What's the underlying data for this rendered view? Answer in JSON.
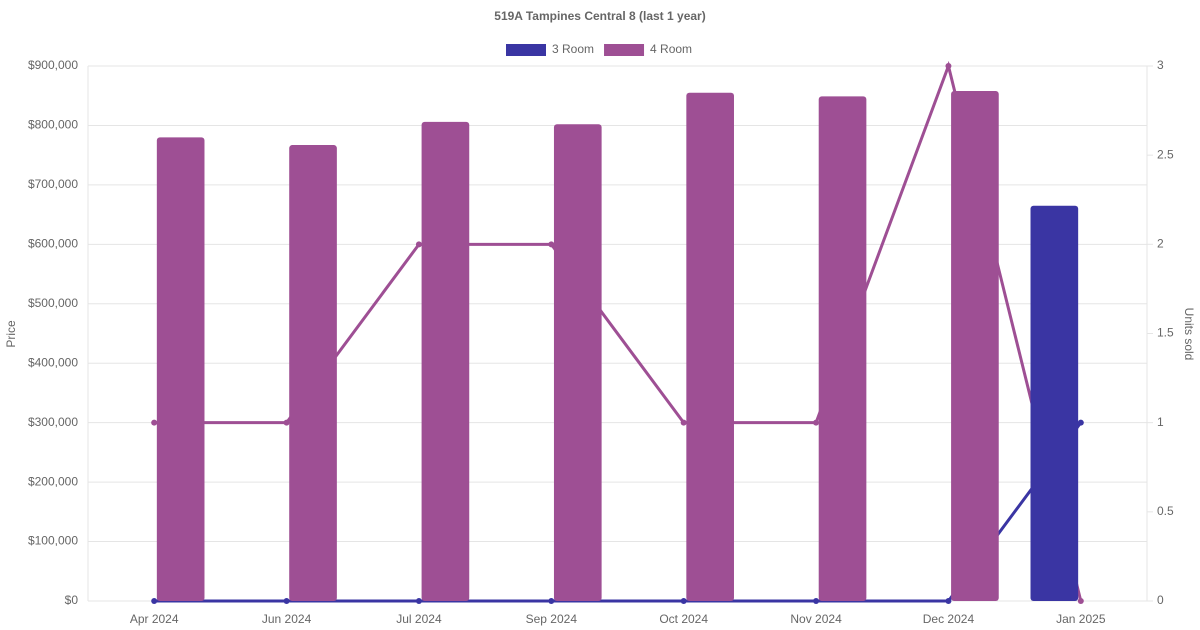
{
  "chart_data": {
    "type": "bar",
    "title": "519A Tampines Central 8 (last 1 year)",
    "categories": [
      "Apr 2024",
      "Jun 2024",
      "Jul 2024",
      "Sep 2024",
      "Oct 2024",
      "Nov 2024",
      "Dec 2024",
      "Jan 2025"
    ],
    "series": [
      {
        "name": "3 Room",
        "color": "#3a35a3",
        "values": [
          null,
          null,
          null,
          null,
          null,
          null,
          null,
          665000
        ],
        "units": [
          0,
          0,
          0,
          0,
          0,
          0,
          0,
          1
        ]
      },
      {
        "name": "4 Room",
        "color": "#9e4f94",
        "values": [
          780000,
          767000,
          806000,
          802000,
          855000,
          849000,
          858000,
          null
        ],
        "units": [
          1,
          1,
          2,
          2,
          1,
          1,
          3,
          0
        ]
      }
    ],
    "ylabel": "Price",
    "y2label": "Units sold",
    "ylim": [
      0,
      900000
    ],
    "yticks": [
      {
        "value": 0,
        "label": "$0"
      },
      {
        "value": 100000,
        "label": "$100,000"
      },
      {
        "value": 200000,
        "label": "$200,000"
      },
      {
        "value": 300000,
        "label": "$300,000"
      },
      {
        "value": 400000,
        "label": "$400,000"
      },
      {
        "value": 500000,
        "label": "$500,000"
      },
      {
        "value": 600000,
        "label": "$600,000"
      },
      {
        "value": 700000,
        "label": "$700,000"
      },
      {
        "value": 800000,
        "label": "$800,000"
      },
      {
        "value": 900000,
        "label": "$900,000"
      }
    ],
    "y2lim": [
      0,
      3
    ],
    "y2ticks": [
      0,
      0.5,
      1,
      1.5,
      2,
      2.5,
      3
    ],
    "grid": true,
    "legend": "top"
  }
}
